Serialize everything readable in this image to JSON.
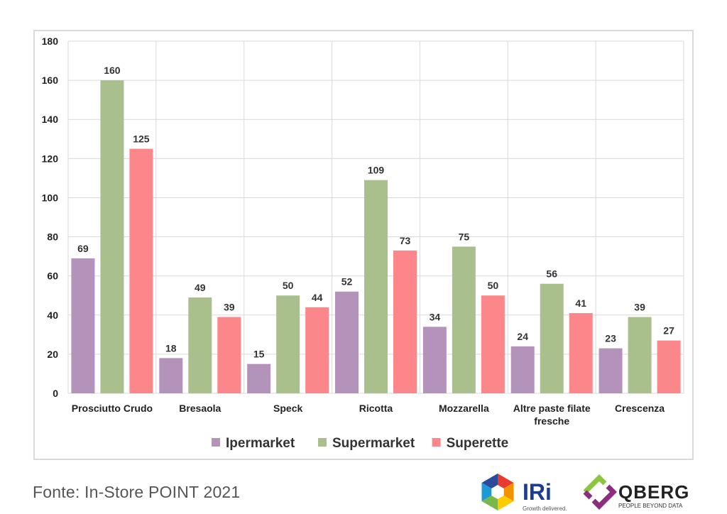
{
  "chart_data": {
    "type": "bar",
    "categories": [
      "Prosciutto Crudo",
      "Bresaola",
      "Speck",
      "Ricotta",
      "Mozzarella",
      "Altre paste filate fresche",
      "Crescenza"
    ],
    "series": [
      {
        "name": "Ipermarket",
        "color": "#b393ba",
        "values": [
          69,
          18,
          15,
          52,
          34,
          24,
          23
        ]
      },
      {
        "name": "Supermarket",
        "color": "#a9c08c",
        "values": [
          160,
          49,
          50,
          109,
          75,
          56,
          39
        ]
      },
      {
        "name": "Superette",
        "color": "#fc878a",
        "values": [
          125,
          39,
          44,
          73,
          50,
          41,
          27
        ]
      }
    ],
    "ylim": [
      0,
      180
    ],
    "yticks": [
      0,
      20,
      40,
      60,
      80,
      100,
      120,
      140,
      160,
      180
    ],
    "grid": true,
    "legend": "bottom",
    "title": "",
    "xlabel": "",
    "ylabel": ""
  },
  "footer": {
    "source": "Fonte: In-Store POINT 2021",
    "logo_iri_text": "IRi",
    "logo_iri_tagline": "Growth delivered.",
    "logo_qberg_text": "QBERG",
    "logo_qberg_tagline": "PEOPLE BEYOND DATA"
  }
}
